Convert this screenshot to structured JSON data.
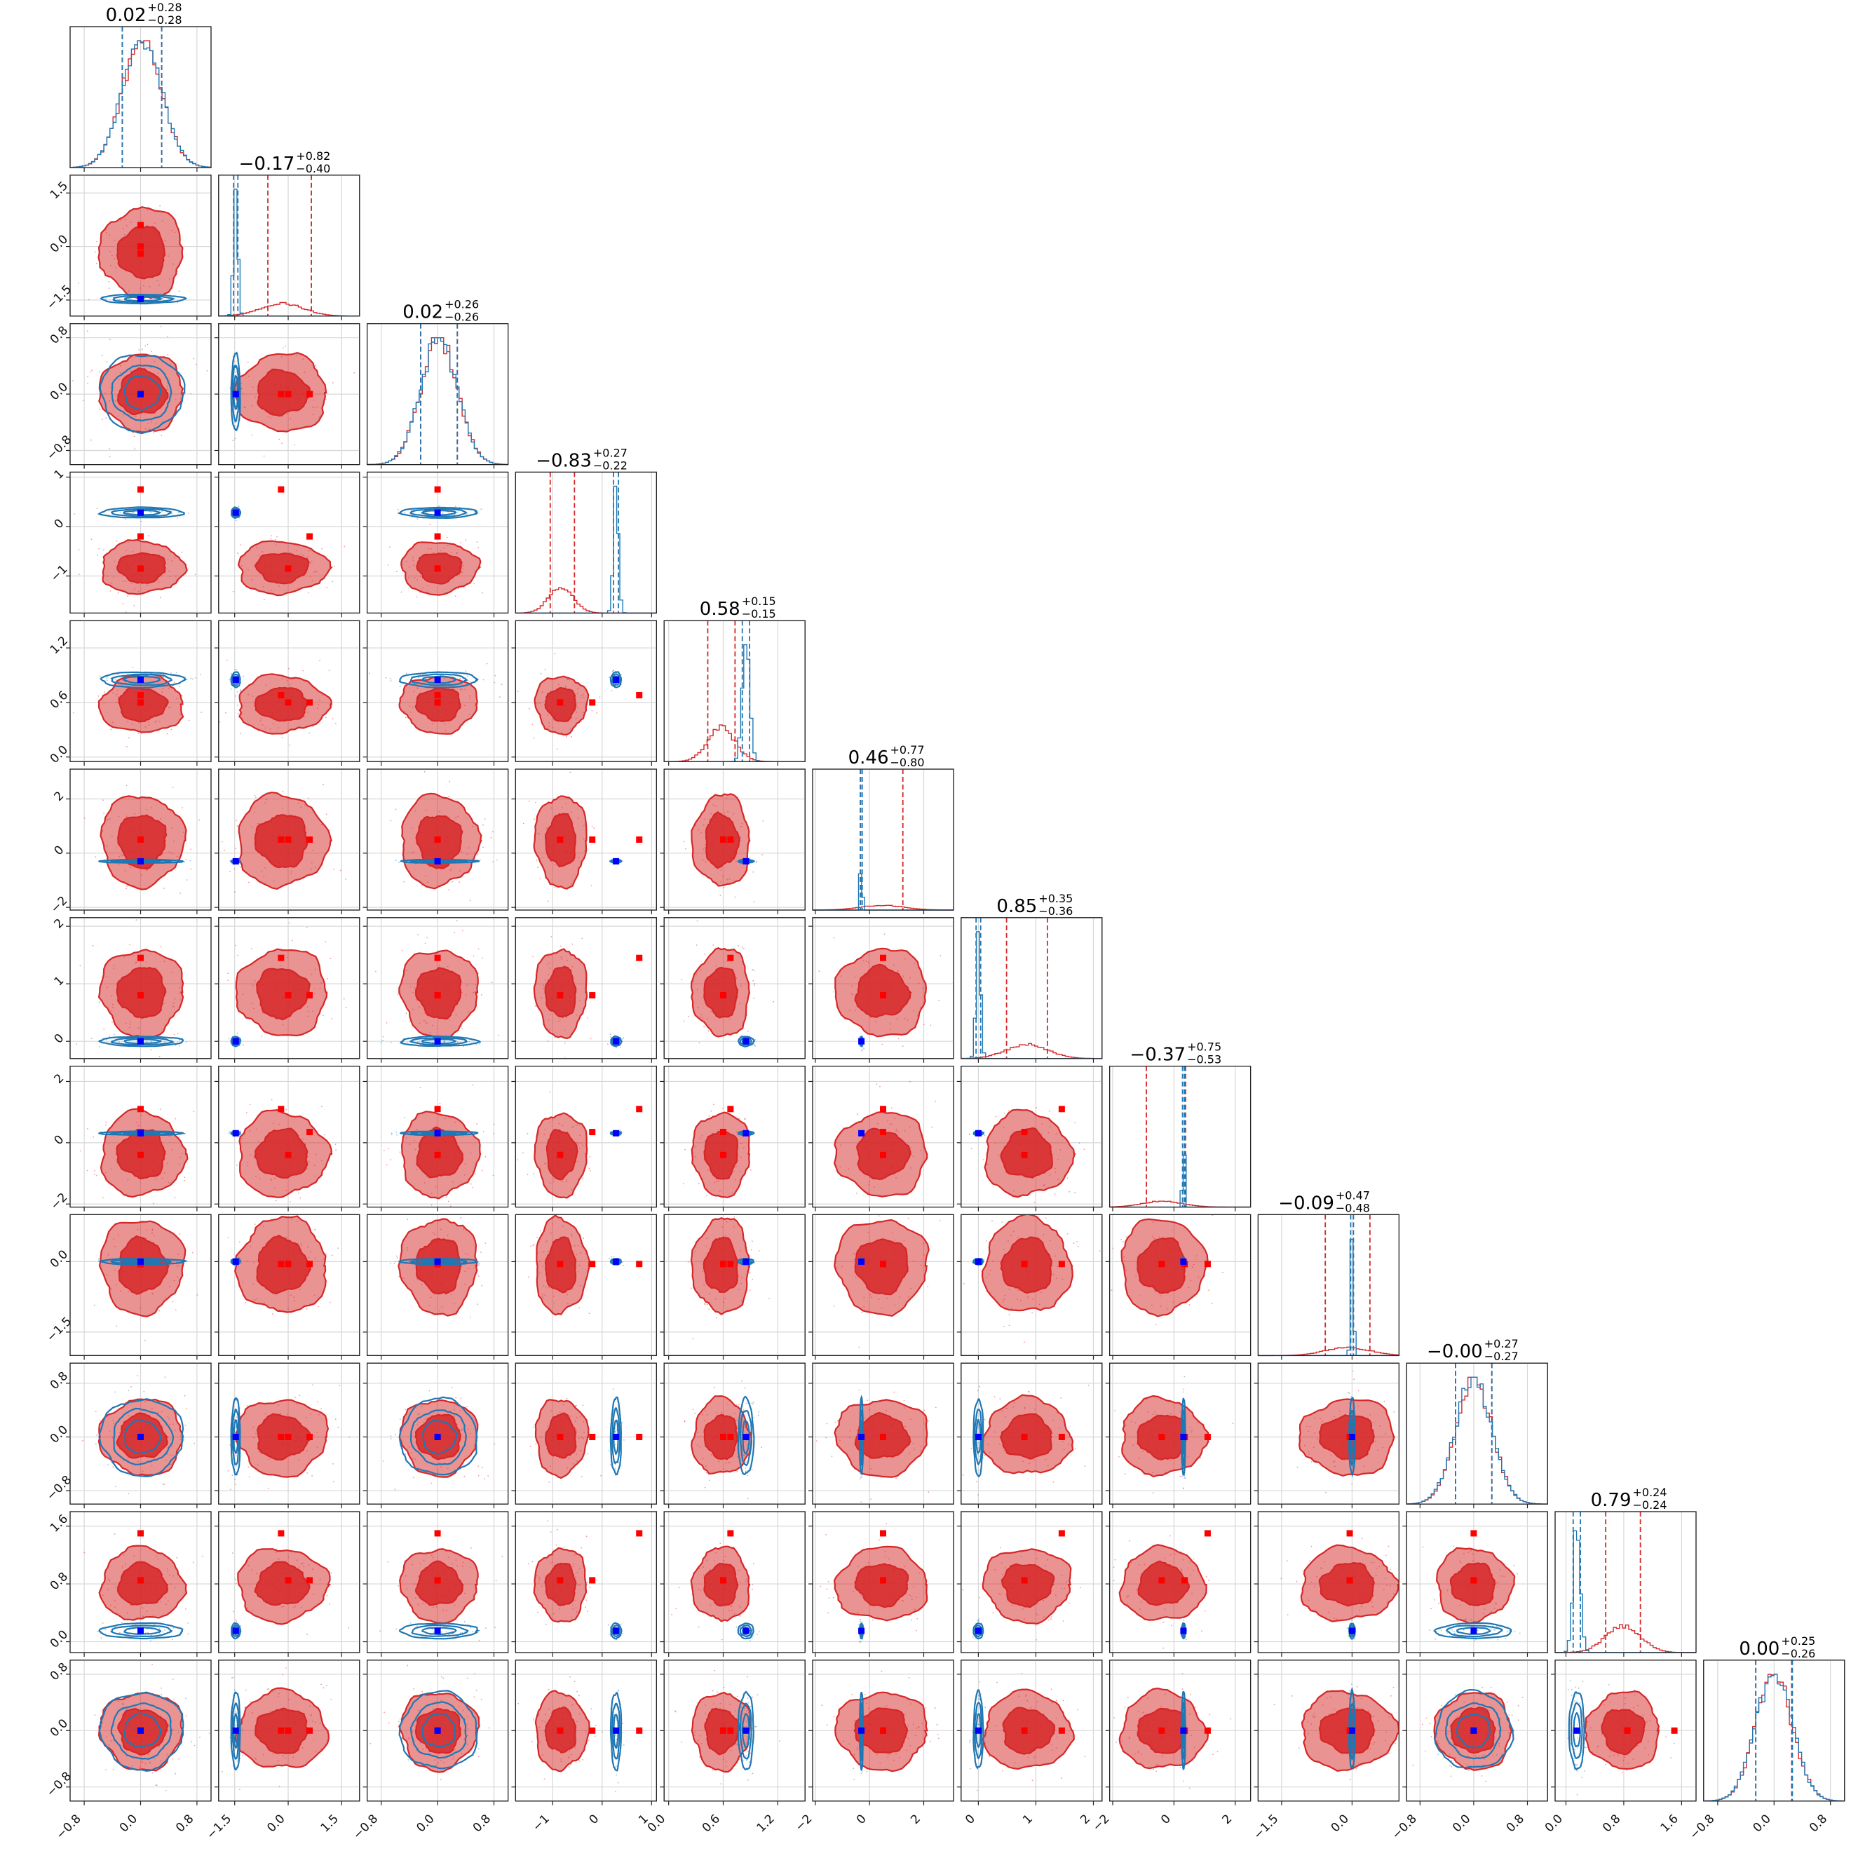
{
  "chart_data": {
    "type": "scatter",
    "title": "",
    "n_params": 12,
    "grid": true,
    "colors": {
      "posterior_a": "#d62728",
      "posterior_b": "#1f77b4",
      "truth_a": "#ff0000",
      "truth_b": "#0000ff"
    },
    "ranges": [
      [
        -1.0,
        1.0
      ],
      [
        -1.95,
        2.0
      ],
      [
        -1.0,
        1.0
      ],
      [
        -1.75,
        1.1
      ],
      [
        -0.05,
        1.5
      ],
      [
        -2.1,
        3.1
      ],
      [
        -0.3,
        2.15
      ],
      [
        -2.1,
        2.5
      ],
      [
        -2.0,
        1.0
      ],
      [
        -1.0,
        1.1
      ],
      [
        -0.15,
        1.8
      ],
      [
        -1.0,
        1.0
      ]
    ],
    "ticks": [
      [
        -0.8,
        0.0,
        0.8
      ],
      [
        -1.5,
        0.0,
        1.5
      ],
      [
        -0.8,
        0.0,
        0.8
      ],
      [
        -1,
        0,
        1
      ],
      [
        0.0,
        0.6,
        1.2
      ],
      [
        -2,
        0,
        2
      ],
      [
        0,
        1,
        2
      ],
      [
        -2,
        0,
        2
      ],
      [
        -1.5,
        0.0
      ],
      [
        -0.8,
        0.0,
        0.8
      ],
      [
        0.0,
        0.8,
        1.6
      ],
      [
        -0.8,
        0.0,
        0.8
      ]
    ],
    "tick_labels": [
      [
        "−0.8",
        "0.0",
        "0.8"
      ],
      [
        "−1.5",
        "0.0",
        "1.5"
      ],
      [
        "−0.8",
        "0.0",
        "0.8"
      ],
      [
        "−1",
        "0",
        "1"
      ],
      [
        "0.0",
        "0.6",
        "1.2"
      ],
      [
        "−2",
        "0",
        "2"
      ],
      [
        "0",
        "1",
        "2"
      ],
      [
        "−2",
        "0",
        "2"
      ],
      [
        "−1.5",
        "0.0"
      ],
      [
        "−0.8",
        "0.0",
        "0.8"
      ],
      [
        "0.0",
        "0.8",
        "1.6"
      ],
      [
        "−0.8",
        "0.0",
        "0.8"
      ]
    ],
    "titles": [
      {
        "value": "0.02",
        "plus": "+0.28",
        "minus": "−0.28"
      },
      {
        "value": "−0.17",
        "plus": "+0.82",
        "minus": "−0.40"
      },
      {
        "value": "0.02",
        "plus": "+0.26",
        "minus": "−0.26"
      },
      {
        "value": "−0.83",
        "plus": "+0.27",
        "minus": "−0.22"
      },
      {
        "value": "0.58",
        "plus": "+0.15",
        "minus": "−0.15"
      },
      {
        "value": "0.46",
        "plus": "+0.77",
        "minus": "−0.80"
      },
      {
        "value": "0.85",
        "plus": "+0.35",
        "minus": "−0.36"
      },
      {
        "value": "−0.37",
        "plus": "+0.75",
        "minus": "−0.53"
      },
      {
        "value": "−0.09",
        "plus": "+0.47",
        "minus": "−0.48"
      },
      {
        "value": "−0.00",
        "plus": "+0.27",
        "minus": "−0.27"
      },
      {
        "value": "0.79",
        "plus": "+0.24",
        "minus": "−0.24"
      },
      {
        "value": "0.00",
        "plus": "+0.25",
        "minus": "−0.26"
      }
    ],
    "series": [
      {
        "color": "#d62728",
        "mean": [
          0.02,
          -0.17,
          0.02,
          -0.83,
          0.58,
          0.46,
          0.85,
          -0.37,
          -0.09,
          0.0,
          0.79,
          0.0
        ],
        "sigma": [
          0.28,
          0.6,
          0.26,
          0.25,
          0.15,
          0.8,
          0.36,
          0.65,
          0.48,
          0.27,
          0.24,
          0.26
        ],
        "quantiles": [
          [
            -0.26,
            0.3
          ],
          [
            -0.57,
            0.65
          ],
          [
            -0.24,
            0.28
          ],
          [
            -1.05,
            -0.56
          ],
          [
            0.43,
            0.73
          ],
          [
            -0.34,
            1.23
          ],
          [
            0.49,
            1.2
          ],
          [
            -0.9,
            0.38
          ],
          [
            -0.57,
            0.38
          ],
          [
            -0.27,
            0.27
          ],
          [
            0.55,
            1.03
          ],
          [
            -0.26,
            0.25
          ]
        ]
      },
      {
        "color": "#1f77b4",
        "mean": [
          0.02,
          -1.47,
          0.02,
          0.28,
          0.85,
          -0.3,
          0.0,
          0.31,
          0.0,
          0.0,
          0.15,
          0.0
        ],
        "sigma": [
          0.28,
          0.06,
          0.26,
          0.05,
          0.04,
          0.03,
          0.04,
          0.03,
          0.03,
          0.27,
          0.05,
          0.26
        ],
        "quantiles": [
          [
            -0.26,
            0.3
          ],
          [
            -1.53,
            -1.41
          ],
          [
            -0.24,
            0.28
          ],
          [
            0.23,
            0.33
          ],
          [
            0.81,
            0.89
          ],
          [
            -0.33,
            -0.27
          ],
          [
            -0.04,
            0.04
          ],
          [
            0.28,
            0.34
          ],
          [
            -0.03,
            0.03
          ],
          [
            -0.27,
            0.27
          ],
          [
            0.1,
            0.2
          ],
          [
            -0.26,
            0.26
          ]
        ]
      }
    ],
    "truths": [
      {
        "color": "#ff0000",
        "points": [
          [
            0.0,
            -0.2,
            0.0,
            0.75,
            0.68,
            0.5,
            1.45,
            1.1,
            -0.05,
            0.0,
            1.5,
            0.0
          ],
          [
            0.0,
            0.6,
            0.0,
            -0.2,
            0.6,
            0.5,
            0.8,
            0.35,
            -0.05,
            0.0,
            0.85,
            0.0
          ],
          [
            0.0,
            0.0,
            0.0,
            -0.85,
            0.6,
            0.5,
            0.8,
            -0.4,
            -0.05,
            0.0,
            0.85,
            0.0
          ]
        ]
      },
      {
        "color": "#0000ff",
        "points": [
          [
            0.0,
            -1.47,
            0.0,
            0.28,
            0.85,
            -0.3,
            0.0,
            0.31,
            0.0,
            0.0,
            0.15,
            0.0
          ]
        ]
      }
    ]
  }
}
